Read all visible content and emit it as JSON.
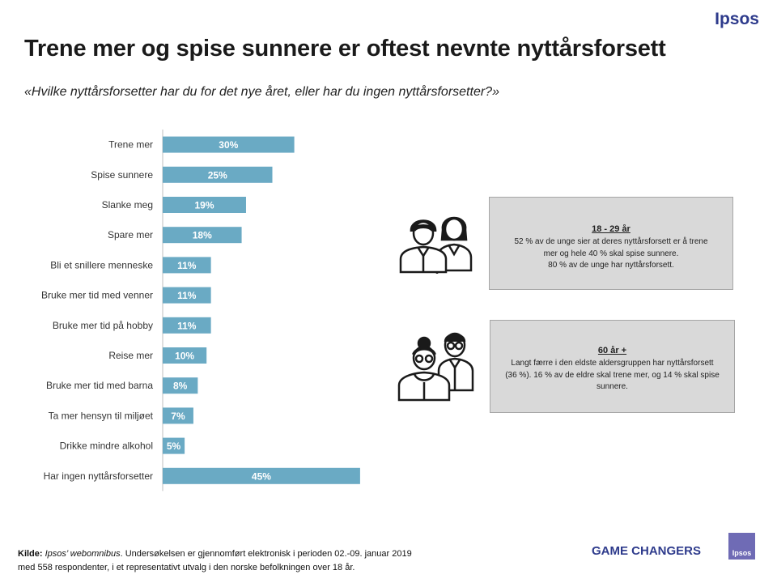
{
  "header": {
    "logo": "Ipsos",
    "title": "Trene mer og spise sunnere er oftest nevnte nyttårsforsett",
    "question": "«Hvilke nyttårsforsetter har du for det nye året, eller har du ingen nyttårsforsetter?»"
  },
  "chart_data": {
    "type": "bar",
    "orientation": "horizontal",
    "categories": [
      "Trene mer",
      "Spise sunnere",
      "Slanke meg",
      "Spare mer",
      "Bli et snillere menneske",
      "Bruke mer tid med venner",
      "Bruke mer tid på hobby",
      "Reise mer",
      "Bruke mer tid med barna",
      "Ta mer hensyn til miljøet",
      "Drikke mindre alkohol",
      "Har ingen nyttårsforsetter"
    ],
    "values": [
      30,
      25,
      19,
      18,
      11,
      11,
      11,
      10,
      8,
      7,
      5,
      45
    ],
    "value_labels": [
      "30%",
      "25%",
      "19%",
      "18%",
      "11%",
      "11%",
      "11%",
      "10%",
      "8%",
      "7%",
      "5%",
      "45%"
    ],
    "xlim": [
      0,
      50
    ],
    "bar_color": "#6aaac4",
    "label_color": "#ffffff",
    "grid": false
  },
  "panels": {
    "young": {
      "heading": "18 - 29 år",
      "lines": [
        "52 % av de unge sier at deres nyttårsforsett er å trene",
        "mer og hele 40 % skal spise sunnere.",
        "80 % av de unge har nyttårsforsett."
      ]
    },
    "old": {
      "heading": "60 år +",
      "lines": [
        "Langt færre i den eldste aldersgruppen har nyttårsforsett",
        "(36 %). 16 % av de eldre skal trene mer, og 14 % skal spise",
        "sunnere."
      ]
    }
  },
  "footer": {
    "source_label": "Kilde:",
    "source_name": "Ipsos’ webomnibus",
    "source_rest": ". Undersøkelsen er gjennomført elektronisk i perioden 02.-09. januar 2019",
    "line2": "med 558 respondenter,  i et representativt utvalg i den norske befolkningen over 18 år.",
    "game_changers": "GAME CHANGERS",
    "logo_small": "Ipsos"
  },
  "colors": {
    "brand": "#2e3b8c",
    "panel_bg": "#d9d9d9"
  }
}
